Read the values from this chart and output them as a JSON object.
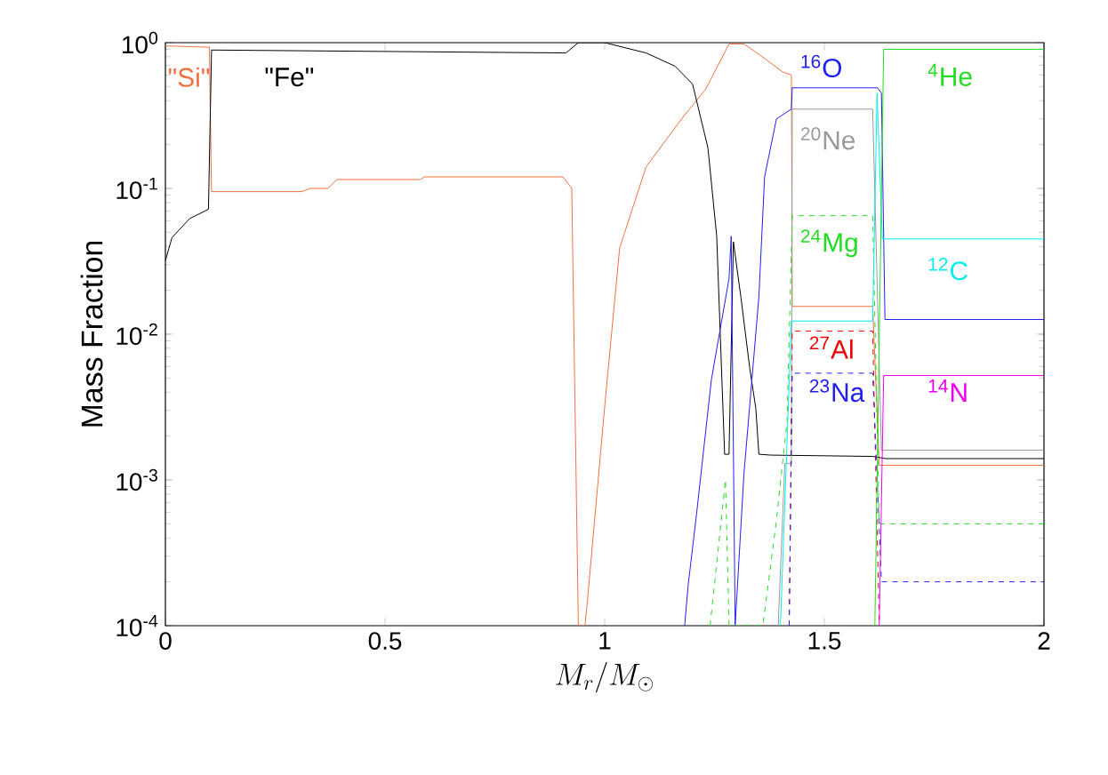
{
  "chart_data": {
    "type": "line",
    "xlabel": "M_r/M_\\odot",
    "ylabel": "Mass Fraction",
    "log": true,
    "xlim": [
      0,
      2
    ],
    "ylim": [
      0.0001,
      1
    ],
    "xticks": [
      0,
      0.5,
      1,
      1.5,
      2
    ],
    "yticks": [
      {
        "value": 0.0001,
        "label": "10$^{-4}$"
      },
      {
        "value": 0.001,
        "label": "10$^{-3}$"
      },
      {
        "value": 0.01,
        "label": "10$^{-2}$"
      },
      {
        "value": 0.1,
        "label": "10$^{-1}$"
      },
      {
        "value": 1,
        "label": "10$^{0}$"
      }
    ],
    "series": [
      {
        "name": "\"Si\"",
        "color": "#f07040",
        "line_style": "solid",
        "x": [
          0,
          0.1,
          0.105,
          0.31,
          0.33,
          0.37,
          0.39,
          0.58,
          0.59,
          0.905,
          0.925,
          0.94,
          0.955,
          0.96,
          1.0,
          1.034,
          1.094,
          1.175,
          1.23,
          1.283,
          1.317,
          1.364,
          1.405,
          1.425,
          1.427,
          1.61,
          1.625,
          2.0
        ],
        "values": [
          0.95,
          0.93,
          0.095,
          0.095,
          0.1,
          0.1,
          0.115,
          0.115,
          0.12,
          0.12,
          0.1,
          0.0001,
          0.0001,
          0.00014,
          0.0032,
          0.039,
          0.14,
          0.3,
          0.48,
          0.98,
          0.98,
          0.78,
          0.63,
          0.6,
          0.0155,
          0.0155,
          0.00126,
          0.00126
        ]
      },
      {
        "name": "\"Fe\"",
        "color": "#000000",
        "line_style": "solid",
        "x": [
          0,
          0.015,
          0.055,
          0.098,
          0.105,
          0.912,
          0.94,
          1.0,
          1.094,
          1.16,
          1.2,
          1.235,
          1.255,
          1.273,
          1.283,
          1.293,
          1.31,
          1.33,
          1.344,
          1.351,
          1.378,
          1.61,
          1.64,
          2.0
        ],
        "values": [
          0.032,
          0.046,
          0.062,
          0.072,
          0.89,
          0.85,
          1.0,
          1.0,
          0.85,
          0.69,
          0.52,
          0.19,
          0.047,
          0.0015,
          0.0015,
          0.043,
          0.018,
          0.0059,
          0.0031,
          0.0015,
          0.00148,
          0.00145,
          0.0014,
          0.0014
        ]
      },
      {
        "name": "$^{16}$O",
        "color": "#2020ee",
        "line_style": "solid",
        "x": [
          1.182,
          1.19,
          1.209,
          1.243,
          1.283,
          1.288,
          1.297,
          1.317,
          1.351,
          1.364,
          1.391,
          1.425,
          1.427,
          1.621,
          1.63,
          1.638,
          2.0
        ],
        "values": [
          0.0001,
          0.00019,
          0.00058,
          0.0049,
          0.024,
          0.047,
          0.0001,
          0.0011,
          0.018,
          0.12,
          0.3,
          0.35,
          0.49,
          0.49,
          0.45,
          0.0126,
          0.0126
        ]
      },
      {
        "name": "$^{20}$Ne",
        "color": "#999999",
        "line_style": "solid",
        "x": [
          1.395,
          1.41,
          1.425,
          1.427,
          1.61,
          1.63,
          2.0
        ],
        "values": [
          0.0001,
          0.0013,
          0.0013,
          0.35,
          0.35,
          0.0016,
          0.0016
        ]
      },
      {
        "name": "$^{24}$Mg",
        "color": "#22dd22",
        "line_style": "dashed",
        "x": [
          1.24,
          1.275,
          1.283,
          1.36,
          1.39,
          1.415,
          1.427,
          1.61,
          1.625,
          2.0
        ],
        "values": [
          0.0001,
          0.001,
          0.0001,
          0.0001,
          0.0005,
          0.0025,
          0.065,
          0.065,
          0.0005,
          0.0005
        ]
      },
      {
        "name": "$^{12}$C",
        "color": "#00eeee",
        "line_style": "solid",
        "x": [
          1.4,
          1.425,
          1.61,
          1.62,
          1.632,
          2.0
        ],
        "values": [
          0.0001,
          0.0123,
          0.0123,
          0.45,
          0.045,
          0.045
        ]
      },
      {
        "name": "$^{27}$Al",
        "color": "#ee0000",
        "line_style": "dashed",
        "x": [
          1.42,
          1.427,
          1.61,
          1.625
        ],
        "values": [
          0.0001,
          0.0105,
          0.0105,
          0.0001
        ]
      },
      {
        "name": "$^{23}$Na",
        "color": "#2020ee",
        "line_style": "dashed",
        "x": [
          1.42,
          1.427,
          1.61,
          1.63,
          2.0
        ],
        "values": [
          0.0001,
          0.0054,
          0.0054,
          0.0002,
          0.0002
        ]
      },
      {
        "name": "$^{4}$He",
        "color": "#22dd22",
        "line_style": "solid",
        "x": [
          1.615,
          1.635,
          2.0
        ],
        "values": [
          0.0001,
          0.9,
          0.9
        ]
      },
      {
        "name": "$^{14}$N",
        "color": "#ee00ee",
        "line_style": "solid",
        "x": [
          1.625,
          1.635,
          2.0
        ],
        "values": [
          0.0001,
          0.0052,
          0.0052
        ]
      }
    ]
  }
}
